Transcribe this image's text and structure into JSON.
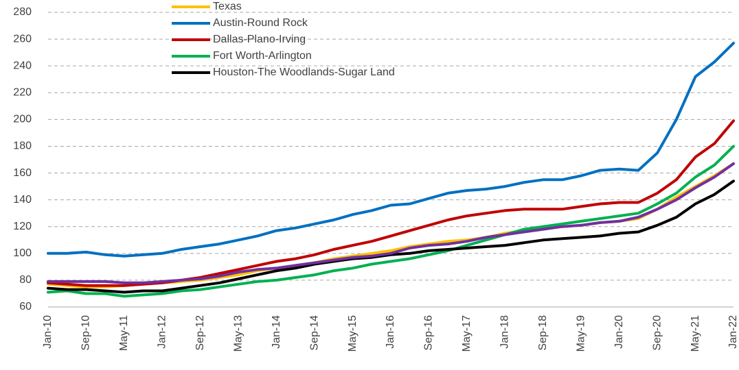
{
  "chart_data": {
    "type": "line",
    "categories": [
      "Jan-10",
      null,
      "Sep-10",
      null,
      "May-11",
      null,
      "Jan-12",
      null,
      "Sep-12",
      null,
      "May-13",
      null,
      "Jan-14",
      null,
      "Sep-14",
      null,
      "May-15",
      null,
      "Jan-16",
      null,
      "Sep-16",
      null,
      "May-17",
      null,
      "Jan-18",
      null,
      "Sep-18",
      null,
      "May-19",
      null,
      "Jan-20",
      null,
      "Sep-20",
      null,
      "May-21",
      null,
      "Jan-22"
    ],
    "series": [
      {
        "name": "Texas",
        "color": "#ffc000",
        "values": [
          77,
          76,
          75,
          75,
          76,
          77,
          78,
          79,
          80,
          82,
          84,
          87,
          89,
          91,
          93,
          96,
          98,
          100,
          102,
          105,
          107,
          109,
          110,
          112,
          115,
          117,
          119,
          120,
          121,
          123,
          124,
          126,
          133,
          142,
          150,
          158,
          167
        ]
      },
      {
        "name": "Austin-Round Rock",
        "color": "#0070c0",
        "values": [
          100,
          100,
          101,
          99,
          98,
          99,
          100,
          103,
          105,
          107,
          110,
          113,
          117,
          119,
          122,
          125,
          129,
          132,
          136,
          137,
          141,
          145,
          147,
          148,
          150,
          153,
          155,
          155,
          158,
          162,
          163,
          162,
          175,
          200,
          232,
          243,
          257
        ]
      },
      {
        "name": "Dallas-Plano-Irving",
        "color": "#c00000",
        "values": [
          78,
          77,
          76,
          76,
          76,
          77,
          78,
          80,
          82,
          85,
          88,
          91,
          94,
          96,
          99,
          103,
          106,
          109,
          113,
          117,
          121,
          125,
          128,
          130,
          132,
          133,
          133,
          133,
          135,
          137,
          138,
          138,
          145,
          155,
          172,
          182,
          199
        ]
      },
      {
        "name": "Fort Worth-Arlington",
        "color": "#00b050",
        "values": [
          71,
          72,
          70,
          70,
          68,
          69,
          70,
          72,
          73,
          75,
          77,
          79,
          80,
          82,
          84,
          87,
          89,
          92,
          94,
          96,
          99,
          102,
          106,
          110,
          114,
          118,
          120,
          122,
          124,
          126,
          128,
          130,
          137,
          145,
          157,
          166,
          180
        ]
      },
      {
        "name": "Houston-The Woodlands-Sugar Land",
        "color": "#000000",
        "values": [
          74,
          73,
          73,
          72,
          71,
          72,
          72,
          74,
          76,
          78,
          81,
          84,
          87,
          89,
          92,
          94,
          96,
          97,
          99,
          100,
          102,
          103,
          104,
          105,
          106,
          108,
          110,
          111,
          112,
          113,
          115,
          116,
          121,
          127,
          137,
          144,
          154
        ]
      },
      {
        "color": "#7030a0",
        "values": [
          79,
          79,
          79,
          79,
          78,
          78,
          79,
          80,
          81,
          83,
          86,
          88,
          89,
          91,
          93,
          95,
          97,
          98,
          100,
          104,
          106,
          107,
          109,
          112,
          114,
          116,
          118,
          120,
          121,
          123,
          124,
          127,
          133,
          140,
          149,
          157,
          167
        ]
      }
    ],
    "ylim": [
      60,
      280
    ],
    "yticks": [
      60,
      80,
      100,
      120,
      140,
      160,
      180,
      200,
      220,
      240,
      260,
      280
    ],
    "grid": true
  }
}
